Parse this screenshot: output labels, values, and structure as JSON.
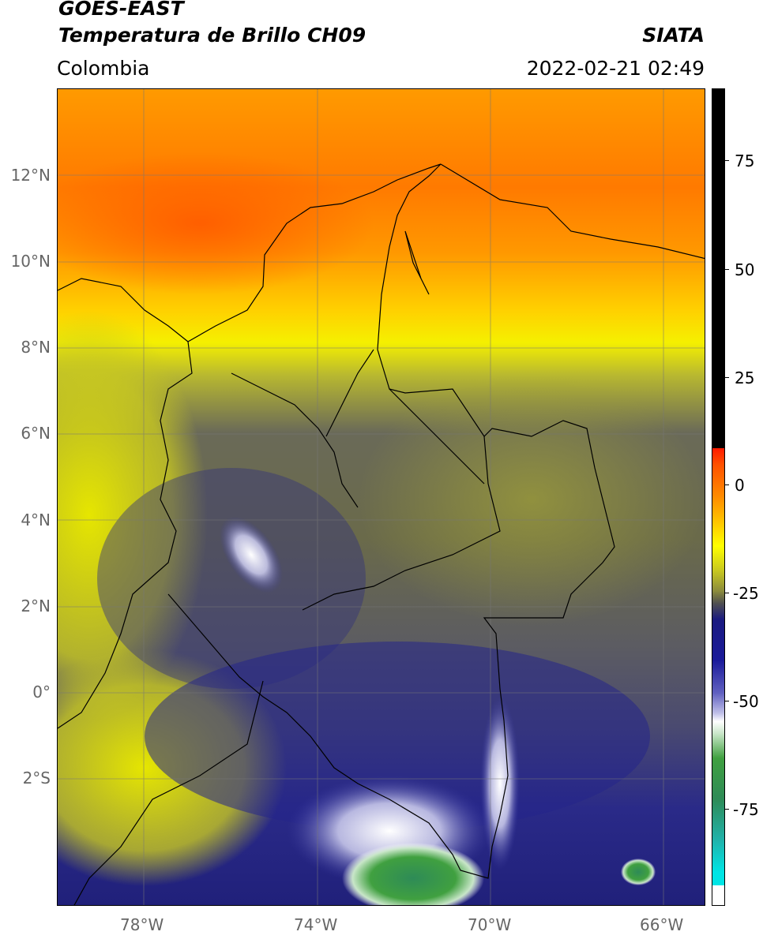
{
  "header": {
    "satellite": "GOES-EAST",
    "product": "Temperatura de Brillo CH09",
    "region": "Colombia",
    "org": "SIATA",
    "datetime": "2022-02-21 02:49"
  },
  "map": {
    "lat_labels": [
      "12°N",
      "10°N",
      "8°N",
      "6°N",
      "4°N",
      "2°N",
      "0°",
      "2°S"
    ],
    "lon_labels": [
      "78°W",
      "74°W",
      "70°W",
      "66°W"
    ],
    "gridlines": true
  },
  "colorbar": {
    "ticks": [
      "75",
      "50",
      "25",
      "0",
      "-25",
      "-50",
      "-75"
    ],
    "colors": {
      "warm_black": "#000000",
      "red": "#ff1a00",
      "orange": "#ff8c00",
      "yellow": "#ffff00",
      "olive": "#8c8c3c",
      "navy": "#1a1a80",
      "white": "#ffffff",
      "green": "#40a040",
      "cyan": "#00e5e5"
    }
  }
}
